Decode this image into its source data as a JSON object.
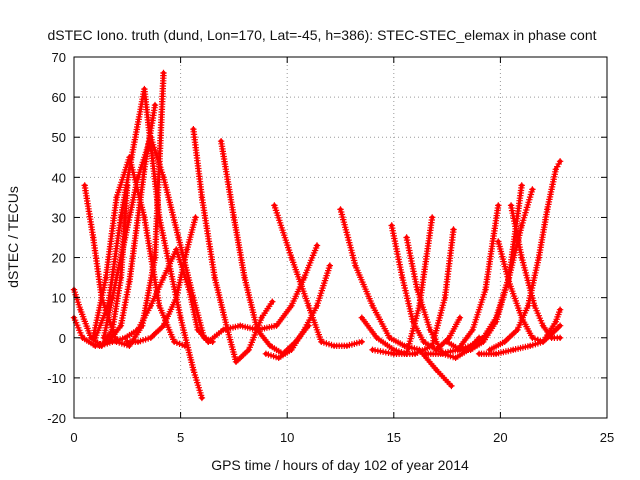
{
  "chart_data": {
    "type": "scatter",
    "title": "dSTEC Iono. truth (dund, Lon=170, Lat=-45, h=386): STEC-STEC_elemax in phase cont",
    "xlabel": "GPS time / hours of day 102 of year 2014",
    "ylabel": "dSTEC  / TECUs",
    "xlim": [
      0,
      25
    ],
    "ylim": [
      -20,
      70
    ],
    "x_ticks": [
      0,
      5,
      10,
      15,
      20,
      25
    ],
    "y_ticks": [
      -20,
      -10,
      0,
      10,
      20,
      30,
      40,
      50,
      60,
      70
    ],
    "grid": true,
    "marker": "plus",
    "color": "#ff0000",
    "series": [
      {
        "x": [
          0.0,
          0.3,
          0.8,
          1.3,
          1.8,
          2.2,
          2.5
        ],
        "values": [
          12,
          7,
          0,
          -2,
          2,
          15,
          38
        ]
      },
      {
        "x": [
          0.0,
          0.4,
          1.0,
          1.6,
          2.2,
          2.6,
          3.3,
          3.8
        ],
        "values": [
          5,
          0,
          -2,
          -1,
          3,
          14,
          42,
          58
        ]
      },
      {
        "x": [
          0.5,
          0.9,
          1.3,
          2.0,
          2.6,
          3.2,
          3.8,
          4.2
        ],
        "values": [
          38,
          25,
          10,
          -1,
          -2,
          3,
          20,
          66
        ]
      },
      {
        "x": [
          0.9,
          1.5,
          2.0,
          2.6,
          3.3,
          4.0,
          4.7,
          5.2
        ],
        "values": [
          0,
          15,
          35,
          45,
          30,
          8,
          -1,
          -2
        ]
      },
      {
        "x": [
          1.0,
          1.6,
          2.2,
          2.7,
          3.3,
          4.0,
          5.0,
          5.6,
          6.0
        ],
        "values": [
          0,
          8,
          30,
          45,
          62,
          30,
          5,
          -8,
          -15
        ]
      },
      {
        "x": [
          1.4,
          1.8,
          2.4,
          3.0,
          3.6,
          4.2,
          4.9,
          5.6,
          6.1,
          6.5
        ],
        "values": [
          0,
          10,
          25,
          40,
          50,
          40,
          25,
          10,
          0,
          -1
        ]
      },
      {
        "x": [
          1.2,
          1.8,
          2.4,
          3.0,
          3.6,
          4.2,
          4.8,
          5.4,
          5.8,
          6.3
        ],
        "values": [
          -2,
          -1,
          0,
          2,
          8,
          15,
          22,
          12,
          2,
          -1
        ]
      },
      {
        "x": [
          2.5,
          3.0,
          3.6,
          4.2,
          4.8,
          5.3,
          5.7
        ],
        "values": [
          -1,
          -1,
          0,
          3,
          10,
          22,
          30
        ]
      },
      {
        "x": [
          5.6,
          6.0,
          6.6,
          7.2,
          7.6,
          8.2,
          8.8,
          9.3
        ],
        "values": [
          52,
          35,
          15,
          2,
          -6,
          -3,
          5,
          9
        ]
      },
      {
        "x": [
          6.9,
          7.5,
          8.0,
          8.6,
          9.2,
          9.8,
          10.4,
          11.0
        ],
        "values": [
          49,
          30,
          15,
          2,
          -2,
          -4,
          -1,
          3
        ]
      },
      {
        "x": [
          6.3,
          7.0,
          7.8,
          8.6,
          9.5,
          10.2,
          10.8,
          11.4
        ],
        "values": [
          -1,
          2,
          3,
          2,
          3,
          8,
          15,
          23
        ]
      },
      {
        "x": [
          9.4,
          10.2,
          11.0,
          11.6,
          12.2,
          12.8,
          13.5
        ],
        "values": [
          33,
          20,
          8,
          -1,
          -2,
          -2,
          -1
        ]
      },
      {
        "x": [
          9.0,
          9.6,
          10.2,
          10.8,
          11.4,
          12.0
        ],
        "values": [
          -4,
          -5,
          -3,
          2,
          8,
          18
        ]
      },
      {
        "x": [
          12.5,
          13.2,
          14.0,
          14.8,
          15.5,
          16.2,
          17.0,
          17.7
        ],
        "values": [
          32,
          18,
          8,
          0,
          -2,
          -3,
          -8,
          -12
        ]
      },
      {
        "x": [
          14.9,
          15.4,
          15.9,
          16.4,
          17.0,
          17.6,
          18.1
        ],
        "values": [
          28,
          15,
          4,
          -1,
          -3,
          0,
          5
        ]
      },
      {
        "x": [
          15.6,
          16.1,
          16.7,
          17.3,
          17.9,
          18.5,
          19.0
        ],
        "values": [
          25,
          12,
          2,
          -4,
          -5,
          -3,
          0
        ]
      },
      {
        "x": [
          13.5,
          14.2,
          15.0,
          15.6,
          16.2,
          16.8
        ],
        "values": [
          5,
          0,
          -3,
          -4,
          8,
          30
        ]
      },
      {
        "x": [
          14.0,
          15.0,
          16.0,
          16.8,
          17.4,
          17.8
        ],
        "values": [
          -3,
          -4,
          -4,
          -2,
          10,
          27
        ]
      },
      {
        "x": [
          16.5,
          17.2,
          18.0,
          18.7,
          19.3,
          19.9
        ],
        "values": [
          -4,
          -4,
          -3,
          2,
          12,
          33
        ]
      },
      {
        "x": [
          17.5,
          18.1,
          18.6,
          19.2,
          19.8,
          20.4,
          21.0
        ],
        "values": [
          -1,
          -3,
          -3,
          -1,
          4,
          15,
          38
        ]
      },
      {
        "x": [
          18.0,
          18.6,
          19.2,
          19.8,
          20.4,
          21.0,
          21.5
        ],
        "values": [
          -3,
          -2,
          0,
          5,
          15,
          28,
          37
        ]
      },
      {
        "x": [
          19.9,
          20.4,
          21.0,
          21.5,
          22.0,
          22.4,
          22.8
        ],
        "values": [
          24,
          14,
          5,
          0,
          -1,
          1,
          3
        ]
      },
      {
        "x": [
          20.5,
          21.0,
          21.6,
          22.0,
          22.4,
          22.8
        ],
        "values": [
          33,
          20,
          8,
          3,
          0,
          0
        ]
      },
      {
        "x": [
          19.5,
          20.2,
          20.8,
          21.3,
          21.8,
          22.2,
          22.6,
          22.8
        ],
        "values": [
          -3,
          -1,
          2,
          8,
          20,
          32,
          42,
          44
        ]
      },
      {
        "x": [
          19.0,
          19.8,
          20.6,
          21.4,
          22.0,
          22.6,
          22.8
        ],
        "values": [
          -4,
          -4,
          -3,
          -2,
          -1,
          4,
          7
        ]
      }
    ]
  }
}
